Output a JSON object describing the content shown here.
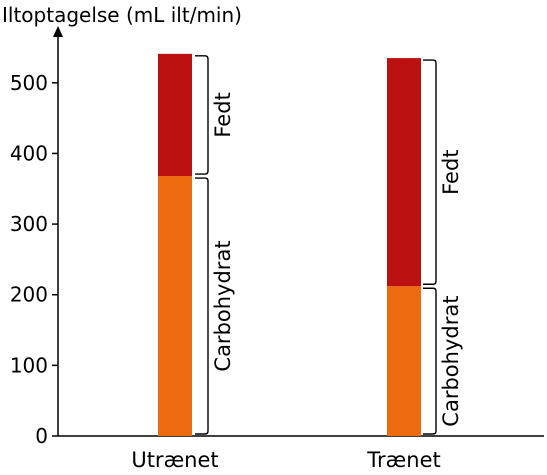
{
  "chart_data": {
    "type": "bar",
    "stacked": true,
    "ylabel": "Iltoptagelse (mL ilt/min)",
    "ylim": [
      0,
      540
    ],
    "yticks": [
      0,
      100,
      200,
      300,
      400,
      500
    ],
    "categories": [
      "Utrænet",
      "Trænet"
    ],
    "series": [
      {
        "name": "Carbohydrat",
        "color": "#ed6b0e",
        "values": [
          368,
          212
        ]
      },
      {
        "name": "Fedt",
        "color": "#bb1111",
        "values": [
          173,
          323
        ]
      }
    ],
    "grid": false,
    "legend": "none"
  }
}
